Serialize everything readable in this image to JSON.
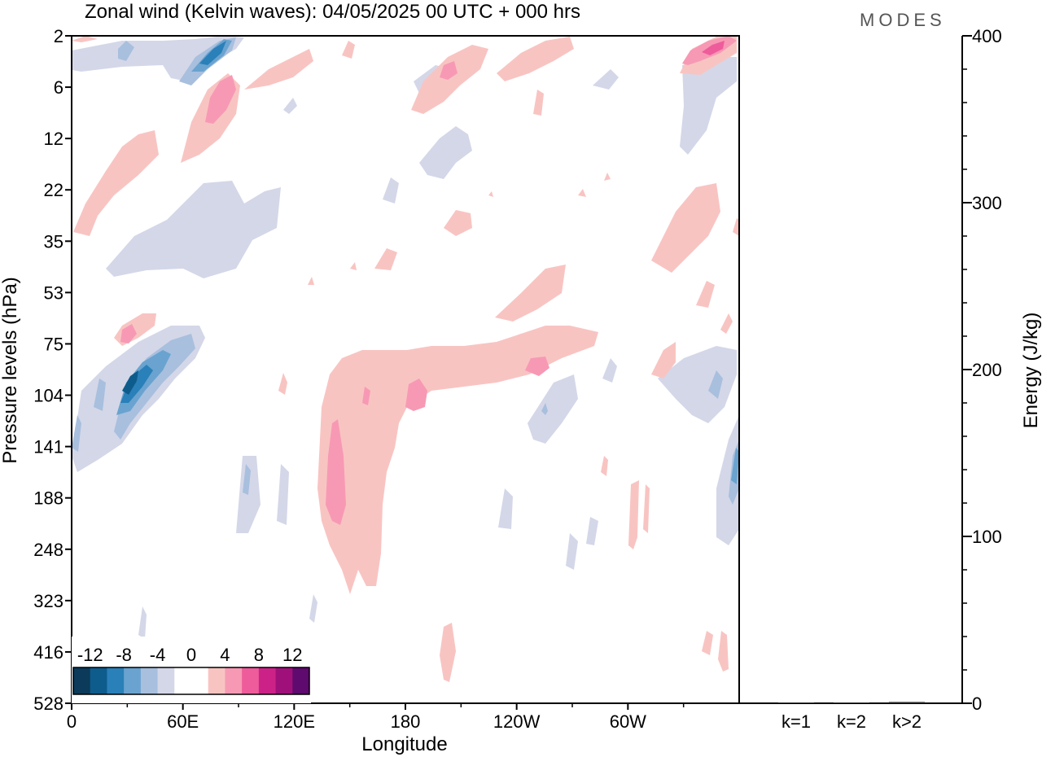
{
  "chart_data": {
    "type": "contour",
    "title": "Zonal wind (Kelvin waves):  04/05/2025  00 UTC  + 000 hrs",
    "brand": "MODES",
    "xlabel": "Longitude",
    "ylabel": "Pressure levels (hPa)",
    "x_ticks": [
      "0",
      "60E",
      "120E",
      "180",
      "120W",
      "60W"
    ],
    "y_ticks": [
      "2",
      "6",
      "12",
      "22",
      "35",
      "53",
      "75",
      "104",
      "141",
      "188",
      "248",
      "323",
      "416",
      "528"
    ],
    "legend": {
      "labels": [
        "-12",
        "-8",
        "-4",
        "0",
        "4",
        "8",
        "12"
      ],
      "colors": [
        "#0b3a5a",
        "#0e5c8c",
        "#2a80b9",
        "#6aa3cf",
        "#a8bfde",
        "#d4d7e8",
        "#ffffff",
        "#ffffff",
        "#f8c4c2",
        "#f799b4",
        "#ee5c9b",
        "#cc2288",
        "#a0107a",
        "#5e0a6e"
      ]
    },
    "energy_panel": {
      "ylabel": "Energy (J/kg)",
      "y_ticks": [
        "0",
        "100",
        "200",
        "300",
        "400"
      ],
      "ylim": [
        0,
        400
      ],
      "categories": [
        "k=1",
        "k=2",
        "k>2"
      ],
      "values": [
        0.3,
        0.3,
        0.8
      ]
    }
  }
}
